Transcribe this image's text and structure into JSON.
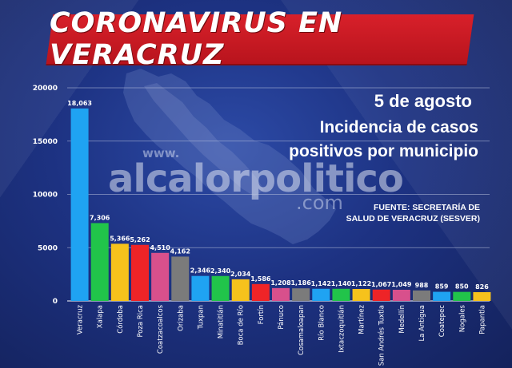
{
  "title": "CORONAVIRUS EN VERACRUZ",
  "date": "5 de agosto",
  "subtitle_line1": "Incidencia de casos",
  "subtitle_line2": "positivos por municipio",
  "source_line1": "FUENTE: SECRETARÍA DE",
  "source_line2": "SALUD DE VERACRUZ (SESVER)",
  "watermark": {
    "small": "www.",
    "main": "alcalorpolitico",
    "suffix": ".com"
  },
  "colors": {
    "background": "#1b2a63",
    "banner": "#d0202a",
    "text": "#ffffff",
    "grid": "#b7c0dc"
  },
  "chart_data": {
    "type": "bar",
    "title": "Incidencia de casos positivos por municipio",
    "xlabel": "",
    "ylabel": "",
    "ylim": [
      0,
      20000
    ],
    "yticks": [
      0,
      5000,
      10000,
      15000,
      20000
    ],
    "ytick_labels": [
      "0",
      "5000",
      "10000",
      "15000",
      "20000"
    ],
    "grid": true,
    "categories": [
      "Veracruz",
      "Xalapa",
      "Córdoba",
      "Poza Rica",
      "Coatzacoalcos",
      "Orizaba",
      "Tuxpan",
      "Minatitlán",
      "Boca de Río",
      "Fortín",
      "Pánuco",
      "Cosamaloapan",
      "Río Blanco",
      "Ixtaczoquitlán",
      "Martínez",
      "San Andrés Tuxtla",
      "Medellín",
      "La Antigua",
      "Coatepec",
      "Nogales",
      "Papantla"
    ],
    "values": [
      18063,
      7306,
      5366,
      5262,
      4510,
      4162,
      2346,
      2340,
      2034,
      1586,
      1208,
      1186,
      1142,
      1140,
      1122,
      1067,
      1049,
      988,
      859,
      850,
      826
    ],
    "value_labels": [
      "18,063",
      "7,306",
      "5,366",
      "5,262",
      "4,510",
      "4,162",
      "2,346",
      "2,340",
      "2,034",
      "1,586",
      "1,208",
      "1,186",
      "1,142",
      "1,140",
      "1,122",
      "1,067",
      "1,049",
      "988",
      "859",
      "850",
      "826"
    ],
    "bar_colors": [
      "#1fa3f2",
      "#21c44a",
      "#f6c21c",
      "#ee2427",
      "#d8508c",
      "#7b7b7b",
      "#1fa3f2",
      "#21c44a",
      "#f6c21c",
      "#ee2427",
      "#d8508c",
      "#7b7b7b",
      "#1fa3f2",
      "#21c44a",
      "#f6c21c",
      "#ee2427",
      "#d8508c",
      "#7b7b7b",
      "#1fa3f2",
      "#21c44a",
      "#f6c21c"
    ]
  }
}
